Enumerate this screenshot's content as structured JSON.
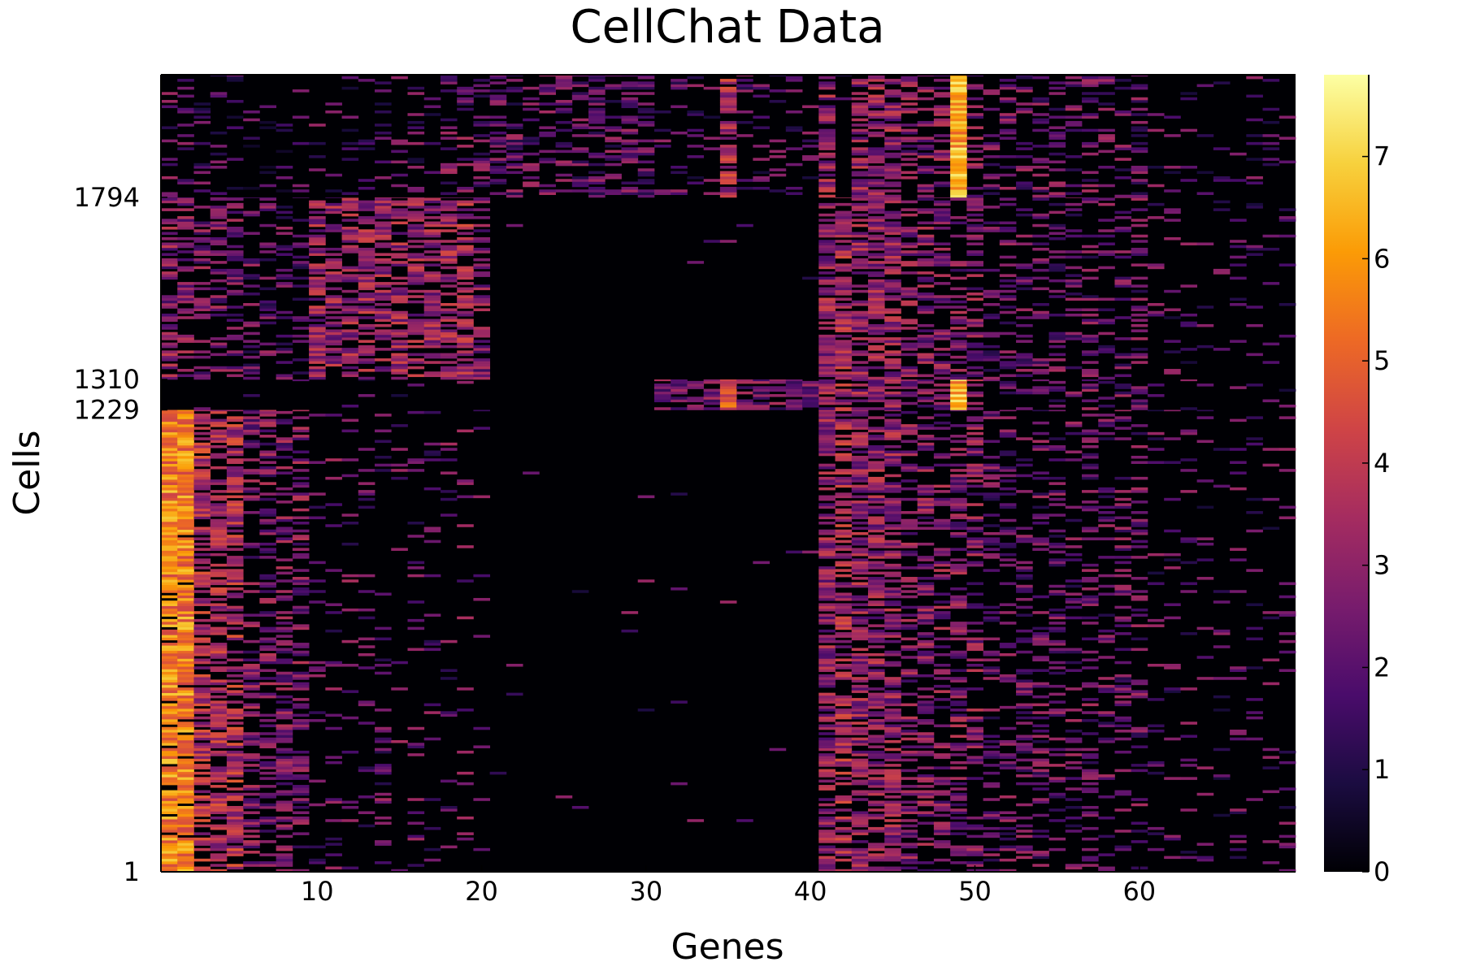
{
  "chart_data": {
    "type": "heatmap",
    "title": "CellChat Data",
    "xlabel": "Genes",
    "ylabel": "Cells",
    "x_range": [
      0.5,
      69.5
    ],
    "y_range": [
      1,
      2120
    ],
    "x_ticks": [
      10,
      20,
      30,
      40,
      50,
      60
    ],
    "y_ticks": [
      1,
      1229,
      1310,
      1794
    ],
    "colorbar": {
      "range": [
        0,
        7.8
      ],
      "ticks": [
        0,
        1,
        2,
        3,
        4,
        5,
        6,
        7
      ],
      "colormap": "inferno",
      "stops": [
        "#000004",
        "#1b0c41",
        "#4a0c6b",
        "#781c6d",
        "#a52c60",
        "#cf4446",
        "#ed6925",
        "#fb9b06",
        "#f7d13d",
        "#fcffa4"
      ]
    },
    "cell_groups": [
      {
        "from": 1,
        "to": 1229
      },
      {
        "from": 1229,
        "to": 1310
      },
      {
        "from": 1310,
        "to": 1794
      },
      {
        "from": 1794,
        "to": 2120
      }
    ],
    "gene_count": 69,
    "grid": false,
    "legend": "colorbar-right"
  }
}
